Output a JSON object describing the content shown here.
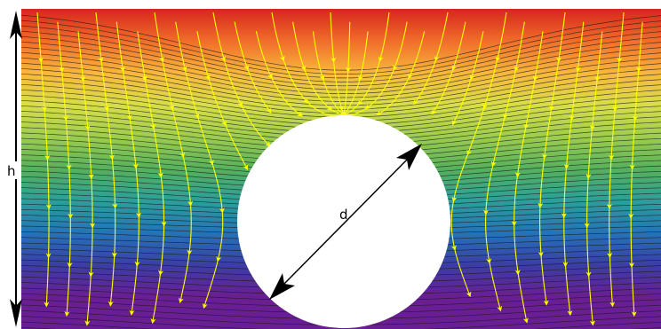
{
  "labels": {
    "height": "h",
    "diameter": "d"
  },
  "colors": {
    "gradient": [
      "#d7261d",
      "#f06d2a",
      "#f8b73c",
      "#d8de48",
      "#9dcd4f",
      "#56b15c",
      "#2c9f9a",
      "#2573b7",
      "#3a3ea5",
      "#6a1e93",
      "#6a1e93"
    ],
    "contour": "#1a1a1a",
    "streamline": "#ffff00",
    "obstacle": "#ffffff",
    "annotation": "#000000"
  },
  "icons": {
    "dimension_arrows": "double-headed-arrow-icon"
  }
}
